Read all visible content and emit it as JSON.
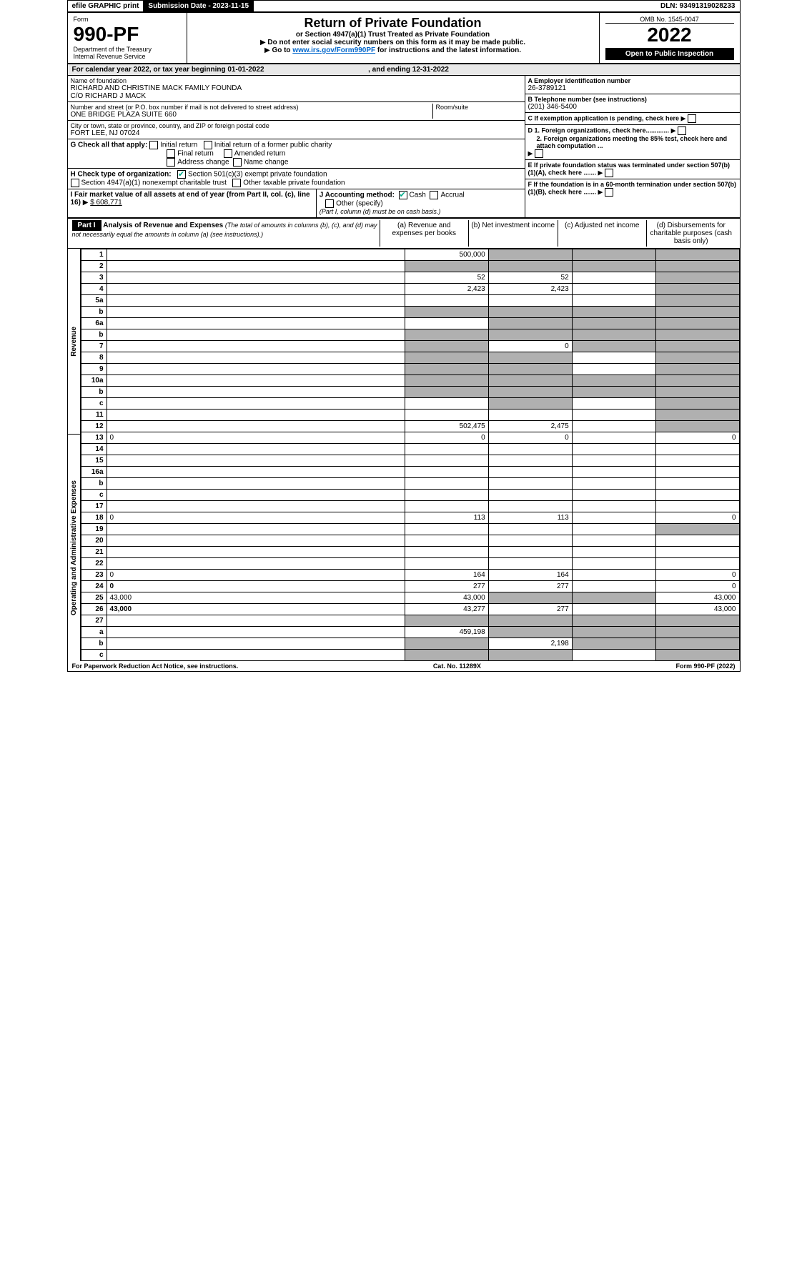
{
  "topbar": {
    "efile": "efile GRAPHIC print",
    "subdate_label": "Submission Date - 2023-11-15",
    "dln": "DLN: 93491319028233"
  },
  "header": {
    "form_label": "Form",
    "form_no": "990-PF",
    "dept": "Department of the Treasury",
    "irs": "Internal Revenue Service",
    "title": "Return of Private Foundation",
    "subtitle": "or Section 4947(a)(1) Trust Treated as Private Foundation",
    "note1": "Do not enter social security numbers on this form as it may be made public.",
    "note2": "Go to",
    "link": "www.irs.gov/Form990PF",
    "note3": "for instructions and the latest information.",
    "omb": "OMB No. 1545-0047",
    "year": "2022",
    "open": "Open to Public Inspection"
  },
  "calendar": {
    "text1": "For calendar year 2022, or tax year beginning 01-01-2022",
    "text2": ", and ending 12-31-2022"
  },
  "info": {
    "name_label": "Name of foundation",
    "name": "RICHARD AND CHRISTINE MACK FAMILY FOUNDA",
    "co": "C/O RICHARD J MACK",
    "addr_label": "Number and street (or P.O. box number if mail is not delivered to street address)",
    "addr": "ONE BRIDGE PLAZA SUITE 660",
    "room_label": "Room/suite",
    "city_label": "City or town, state or province, country, and ZIP or foreign postal code",
    "city": "FORT LEE, NJ  07024",
    "ein_label": "A Employer identification number",
    "ein": "26-3789121",
    "phone_label": "B Telephone number (see instructions)",
    "phone": "(201) 346-5400",
    "c_label": "C If exemption application is pending, check here",
    "d1_label": "D 1. Foreign organizations, check here.............",
    "d2_label": "2. Foreign organizations meeting the 85% test, check here and attach computation ...",
    "e_label": "E If private foundation status was terminated under section 507(b)(1)(A), check here .......",
    "f_label": "F If the foundation is in a 60-month termination under section 507(b)(1)(B), check here .......",
    "g_label": "G Check all that apply:",
    "g_initial": "Initial return",
    "g_initial_former": "Initial return of a former public charity",
    "g_final": "Final return",
    "g_amended": "Amended return",
    "g_addr": "Address change",
    "g_name": "Name change",
    "h_label": "H Check type of organization:",
    "h_501": "Section 501(c)(3) exempt private foundation",
    "h_4947": "Section 4947(a)(1) nonexempt charitable trust",
    "h_other": "Other taxable private foundation",
    "i_label": "I Fair market value of all assets at end of year (from Part II, col. (c), line 16)",
    "i_value": "$  608,771",
    "j_label": "J Accounting method:",
    "j_cash": "Cash",
    "j_accrual": "Accrual",
    "j_other": "Other (specify)",
    "j_note": "(Part I, column (d) must be on cash basis.)"
  },
  "part1": {
    "label": "Part I",
    "title": "Analysis of Revenue and Expenses",
    "note": "(The total of amounts in columns (b), (c), and (d) may not necessarily equal the amounts in column (a) (see instructions).)",
    "col_a": "(a)  Revenue and expenses per books",
    "col_b": "(b)  Net investment income",
    "col_c": "(c)  Adjusted net income",
    "col_d": "(d)  Disbursements for charitable purposes (cash basis only)"
  },
  "sidelabels": {
    "revenue": "Revenue",
    "expenses": "Operating and Administrative Expenses"
  },
  "rows": [
    {
      "n": "1",
      "d": "",
      "a": "500,000",
      "b": "",
      "c": "",
      "grey_b": true,
      "grey_c": true,
      "grey_d": true
    },
    {
      "n": "2",
      "d": "",
      "a": "",
      "b": "",
      "c": "",
      "grey_a": true,
      "grey_b": true,
      "grey_c": true,
      "grey_d": true
    },
    {
      "n": "3",
      "d": "",
      "a": "52",
      "b": "52",
      "c": "",
      "grey_d": true
    },
    {
      "n": "4",
      "d": "",
      "a": "2,423",
      "b": "2,423",
      "c": "",
      "grey_d": true
    },
    {
      "n": "5a",
      "d": "",
      "a": "",
      "b": "",
      "c": "",
      "grey_d": true
    },
    {
      "n": "b",
      "d": "",
      "a": "",
      "b": "",
      "c": "",
      "grey_a": true,
      "grey_b": true,
      "grey_c": true,
      "grey_d": true
    },
    {
      "n": "6a",
      "d": "",
      "a": "",
      "b": "",
      "c": "",
      "grey_b": true,
      "grey_c": true,
      "grey_d": true
    },
    {
      "n": "b",
      "d": "",
      "a": "",
      "b": "",
      "c": "",
      "grey_a": true,
      "grey_b": true,
      "grey_c": true,
      "grey_d": true
    },
    {
      "n": "7",
      "d": "",
      "a": "",
      "b": "0",
      "c": "",
      "grey_a": true,
      "grey_c": true,
      "grey_d": true
    },
    {
      "n": "8",
      "d": "",
      "a": "",
      "b": "",
      "c": "",
      "grey_a": true,
      "grey_b": true,
      "grey_d": true
    },
    {
      "n": "9",
      "d": "",
      "a": "",
      "b": "",
      "c": "",
      "grey_a": true,
      "grey_b": true,
      "grey_d": true
    },
    {
      "n": "10a",
      "d": "",
      "a": "",
      "b": "",
      "c": "",
      "grey_a": true,
      "grey_b": true,
      "grey_c": true,
      "grey_d": true
    },
    {
      "n": "b",
      "d": "",
      "a": "",
      "b": "",
      "c": "",
      "grey_a": true,
      "grey_b": true,
      "grey_c": true,
      "grey_d": true
    },
    {
      "n": "c",
      "d": "",
      "a": "",
      "b": "",
      "c": "",
      "grey_b": true,
      "grey_d": true
    },
    {
      "n": "11",
      "d": "",
      "a": "",
      "b": "",
      "c": "",
      "grey_d": true
    },
    {
      "n": "12",
      "d": "",
      "a": "502,475",
      "b": "2,475",
      "c": "",
      "bold": true,
      "grey_d": true
    },
    {
      "n": "13",
      "d": "0",
      "a": "0",
      "b": "0",
      "c": ""
    },
    {
      "n": "14",
      "d": "",
      "a": "",
      "b": "",
      "c": ""
    },
    {
      "n": "15",
      "d": "",
      "a": "",
      "b": "",
      "c": ""
    },
    {
      "n": "16a",
      "d": "",
      "a": "",
      "b": "",
      "c": ""
    },
    {
      "n": "b",
      "d": "",
      "a": "",
      "b": "",
      "c": ""
    },
    {
      "n": "c",
      "d": "",
      "a": "",
      "b": "",
      "c": ""
    },
    {
      "n": "17",
      "d": "",
      "a": "",
      "b": "",
      "c": ""
    },
    {
      "n": "18",
      "d": "0",
      "a": "113",
      "b": "113",
      "c": ""
    },
    {
      "n": "19",
      "d": "",
      "a": "",
      "b": "",
      "c": "",
      "grey_d": true
    },
    {
      "n": "20",
      "d": "",
      "a": "",
      "b": "",
      "c": ""
    },
    {
      "n": "21",
      "d": "",
      "a": "",
      "b": "",
      "c": ""
    },
    {
      "n": "22",
      "d": "",
      "a": "",
      "b": "",
      "c": ""
    },
    {
      "n": "23",
      "d": "0",
      "a": "164",
      "b": "164",
      "c": ""
    },
    {
      "n": "24",
      "d": "0",
      "a": "277",
      "b": "277",
      "c": "",
      "bold": true
    },
    {
      "n": "25",
      "d": "43,000",
      "a": "43,000",
      "b": "",
      "c": "",
      "grey_b": true,
      "grey_c": true
    },
    {
      "n": "26",
      "d": "43,000",
      "a": "43,277",
      "b": "277",
      "c": "",
      "bold": true
    },
    {
      "n": "27",
      "d": "",
      "a": "",
      "b": "",
      "c": "",
      "grey_a": true,
      "grey_b": true,
      "grey_c": true,
      "grey_d": true
    },
    {
      "n": "a",
      "d": "",
      "a": "459,198",
      "b": "",
      "c": "",
      "bold": true,
      "grey_b": true,
      "grey_c": true,
      "grey_d": true
    },
    {
      "n": "b",
      "d": "",
      "a": "",
      "b": "2,198",
      "c": "",
      "bold": true,
      "grey_a": true,
      "grey_c": true,
      "grey_d": true
    },
    {
      "n": "c",
      "d": "",
      "a": "",
      "b": "",
      "c": "",
      "bold": true,
      "grey_a": true,
      "grey_b": true,
      "grey_d": true
    }
  ],
  "footer": {
    "left": "For Paperwork Reduction Act Notice, see instructions.",
    "mid": "Cat. No. 11289X",
    "right": "Form 990-PF (2022)"
  }
}
